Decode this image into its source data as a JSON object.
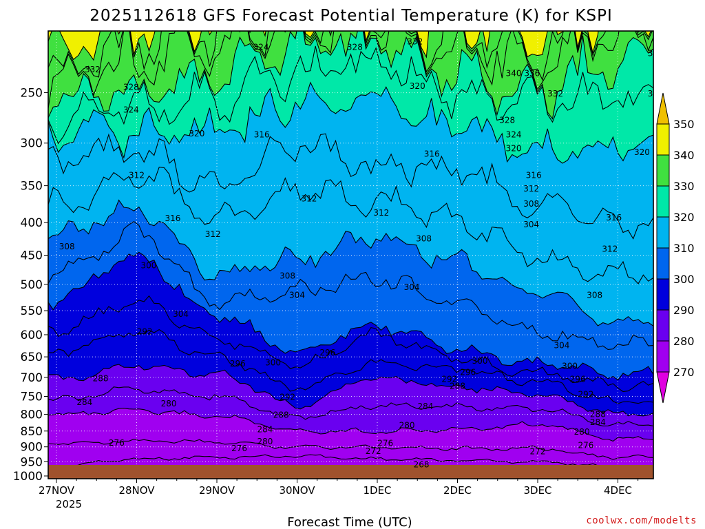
{
  "chart_data": {
    "type": "contour",
    "title": "2025112618 GFS Forecast Potential Temperature (K) for KSPI",
    "xlabel": "Forecast Time (UTC)",
    "ylabel": "",
    "x_ticks": [
      "27NOV",
      "28NOV",
      "29NOV",
      "30NOV",
      "1DEC",
      "2DEC",
      "3DEC",
      "4DEC"
    ],
    "x_start_label": "2025",
    "y_ticks": [
      1000,
      950,
      900,
      850,
      800,
      750,
      700,
      650,
      600,
      550,
      500,
      450,
      400,
      350,
      300,
      250
    ],
    "y_range_hpa": [
      1010,
      200
    ],
    "colorbar": {
      "levels": [
        270,
        280,
        290,
        300,
        310,
        320,
        330,
        340,
        350
      ],
      "colors": [
        "#e000e0",
        "#a000f0",
        "#6a00f0",
        "#0000dd",
        "#0066ee",
        "#00b4f0",
        "#00e8a8",
        "#40e040",
        "#f0f000",
        "#f0c000"
      ]
    },
    "isentropes": [
      {
        "theta": 268,
        "pressure": [
          1002,
          990,
          975,
          965,
          975,
          972,
          972,
          985
        ]
      },
      {
        "theta": 272,
        "pressure": [
          965,
          940,
          935,
          930,
          940,
          945,
          950,
          968
        ]
      },
      {
        "theta": 276,
        "pressure": [
          890,
          880,
          885,
          900,
          900,
          905,
          905,
          935
        ]
      },
      {
        "theta": 280,
        "pressure": [
          800,
          790,
          805,
          850,
          850,
          845,
          830,
          875
        ]
      },
      {
        "theta": 284,
        "pressure": [
          760,
          730,
          750,
          810,
          775,
          780,
          785,
          830
        ]
      },
      {
        "theta": 288,
        "pressure": [
          705,
          670,
          690,
          775,
          700,
          725,
          745,
          800
        ]
      },
      {
        "theta": 292,
        "pressure": [
          640,
          590,
          650,
          725,
          665,
          680,
          710,
          765
        ]
      },
      {
        "theta": 296,
        "pressure": [
          590,
          530,
          610,
          670,
          600,
          655,
          690,
          720
        ]
      },
      {
        "theta": 300,
        "pressure": [
          530,
          450,
          560,
          635,
          580,
          635,
          665,
          690
        ]
      },
      {
        "theta": 304,
        "pressure": [
          480,
          415,
          530,
          510,
          490,
          535,
          595,
          620
        ]
      },
      {
        "theta": 308,
        "pressure": [
          415,
          380,
          480,
          455,
          420,
          460,
          520,
          570
        ]
      },
      {
        "theta": 312,
        "pressure": [
          375,
          335,
          390,
          355,
          370,
          395,
          455,
          480
        ]
      },
      {
        "theta": 316,
        "pressure": [
          320,
          310,
          350,
          300,
          325,
          330,
          375,
          400
        ]
      },
      {
        "theta": 320,
        "pressure": [
          290,
          290,
          290,
          260,
          255,
          285,
          310,
          300
        ]
      },
      {
        "theta": 324,
        "pressure": [
          275,
          268,
          255,
          235,
          225,
          252,
          262,
          252
        ]
      },
      {
        "theta": 328,
        "pressure": [
          262,
          245,
          235,
          215,
          210,
          235,
          248,
          222
        ]
      },
      {
        "theta": 332,
        "pressure": [
          240,
          222,
          212,
          205,
          205,
          215,
          230,
          205
        ]
      },
      {
        "theta": 336,
        "pressure": [
          228,
          210,
          205,
          200,
          200,
          205,
          225,
          200
        ]
      },
      {
        "theta": 340,
        "pressure": [
          215,
          205,
          200,
          200,
          200,
          200,
          220,
          200
        ]
      }
    ],
    "contour_labels": [
      {
        "text": "324",
        "t": 2.55,
        "p": 212
      },
      {
        "text": "328",
        "t": 3.72,
        "p": 212
      },
      {
        "text": "332",
        "t": 4.47,
        "p": 208
      },
      {
        "text": "328",
        "t": 7.47,
        "p": 217
      },
      {
        "text": "332",
        "t": 0.45,
        "p": 230
      },
      {
        "text": "340",
        "t": 5.7,
        "p": 233
      },
      {
        "text": "336",
        "t": 5.93,
        "p": 233
      },
      {
        "text": "328",
        "t": 0.93,
        "p": 245
      },
      {
        "text": "320",
        "t": 4.5,
        "p": 244
      },
      {
        "text": "332",
        "t": 6.22,
        "p": 251
      },
      {
        "text": "324",
        "t": 7.47,
        "p": 251
      },
      {
        "text": "324",
        "t": 0.93,
        "p": 266
      },
      {
        "text": "328",
        "t": 5.62,
        "p": 276
      },
      {
        "text": "320",
        "t": 1.75,
        "p": 290
      },
      {
        "text": "316",
        "t": 2.56,
        "p": 291
      },
      {
        "text": "324",
        "t": 5.7,
        "p": 291
      },
      {
        "text": "320",
        "t": 5.7,
        "p": 306
      },
      {
        "text": "316",
        "t": 4.68,
        "p": 312
      },
      {
        "text": "320",
        "t": 7.3,
        "p": 310
      },
      {
        "text": "312",
        "t": 1.0,
        "p": 337
      },
      {
        "text": "316",
        "t": 5.95,
        "p": 337
      },
      {
        "text": "312",
        "t": 5.92,
        "p": 354
      },
      {
        "text": "312",
        "t": 3.15,
        "p": 367
      },
      {
        "text": "308",
        "t": 5.92,
        "p": 374
      },
      {
        "text": "312",
        "t": 4.05,
        "p": 386
      },
      {
        "text": "316",
        "t": 1.45,
        "p": 394
      },
      {
        "text": "316",
        "t": 6.95,
        "p": 393
      },
      {
        "text": "304",
        "t": 5.92,
        "p": 403
      },
      {
        "text": "312",
        "t": 1.95,
        "p": 417
      },
      {
        "text": "308",
        "t": 4.58,
        "p": 424
      },
      {
        "text": "308",
        "t": 0.13,
        "p": 436
      },
      {
        "text": "312",
        "t": 6.9,
        "p": 440
      },
      {
        "text": "300",
        "t": 1.15,
        "p": 467
      },
      {
        "text": "308",
        "t": 2.88,
        "p": 485
      },
      {
        "text": "304",
        "t": 4.43,
        "p": 505
      },
      {
        "text": "304",
        "t": 3.0,
        "p": 520
      },
      {
        "text": "308",
        "t": 6.71,
        "p": 520
      },
      {
        "text": "304",
        "t": 1.55,
        "p": 557
      },
      {
        "text": "292",
        "t": 1.1,
        "p": 593
      },
      {
        "text": "304",
        "t": 6.3,
        "p": 624
      },
      {
        "text": "296",
        "t": 3.38,
        "p": 640
      },
      {
        "text": "300",
        "t": 5.28,
        "p": 660
      },
      {
        "text": "296",
        "t": 2.26,
        "p": 666
      },
      {
        "text": "300",
        "t": 2.7,
        "p": 664
      },
      {
        "text": "300",
        "t": 6.4,
        "p": 672
      },
      {
        "text": "296",
        "t": 5.13,
        "p": 687
      },
      {
        "text": "288",
        "t": 0.55,
        "p": 703
      },
      {
        "text": "292",
        "t": 4.9,
        "p": 705
      },
      {
        "text": "296",
        "t": 6.5,
        "p": 705
      },
      {
        "text": "288",
        "t": 5.0,
        "p": 722
      },
      {
        "text": "292",
        "t": 6.6,
        "p": 744
      },
      {
        "text": "292",
        "t": 2.88,
        "p": 752
      },
      {
        "text": "284",
        "t": 0.35,
        "p": 766
      },
      {
        "text": "280",
        "t": 1.4,
        "p": 770
      },
      {
        "text": "284",
        "t": 4.6,
        "p": 778
      },
      {
        "text": "288",
        "t": 6.75,
        "p": 800
      },
      {
        "text": "288",
        "t": 2.8,
        "p": 802
      },
      {
        "text": "284",
        "t": 6.75,
        "p": 823
      },
      {
        "text": "280",
        "t": 4.37,
        "p": 833
      },
      {
        "text": "284",
        "t": 2.6,
        "p": 845
      },
      {
        "text": "280",
        "t": 6.55,
        "p": 853
      },
      {
        "text": "280",
        "t": 2.6,
        "p": 883
      },
      {
        "text": "276",
        "t": 0.75,
        "p": 887
      },
      {
        "text": "276",
        "t": 4.1,
        "p": 888
      },
      {
        "text": "276",
        "t": 6.6,
        "p": 895
      },
      {
        "text": "276",
        "t": 2.28,
        "p": 905
      },
      {
        "text": "272",
        "t": 3.95,
        "p": 914
      },
      {
        "text": "272",
        "t": 6.0,
        "p": 915
      },
      {
        "text": "268",
        "t": 4.55,
        "p": 960
      }
    ],
    "credit": "coolwx.com/modelts"
  }
}
